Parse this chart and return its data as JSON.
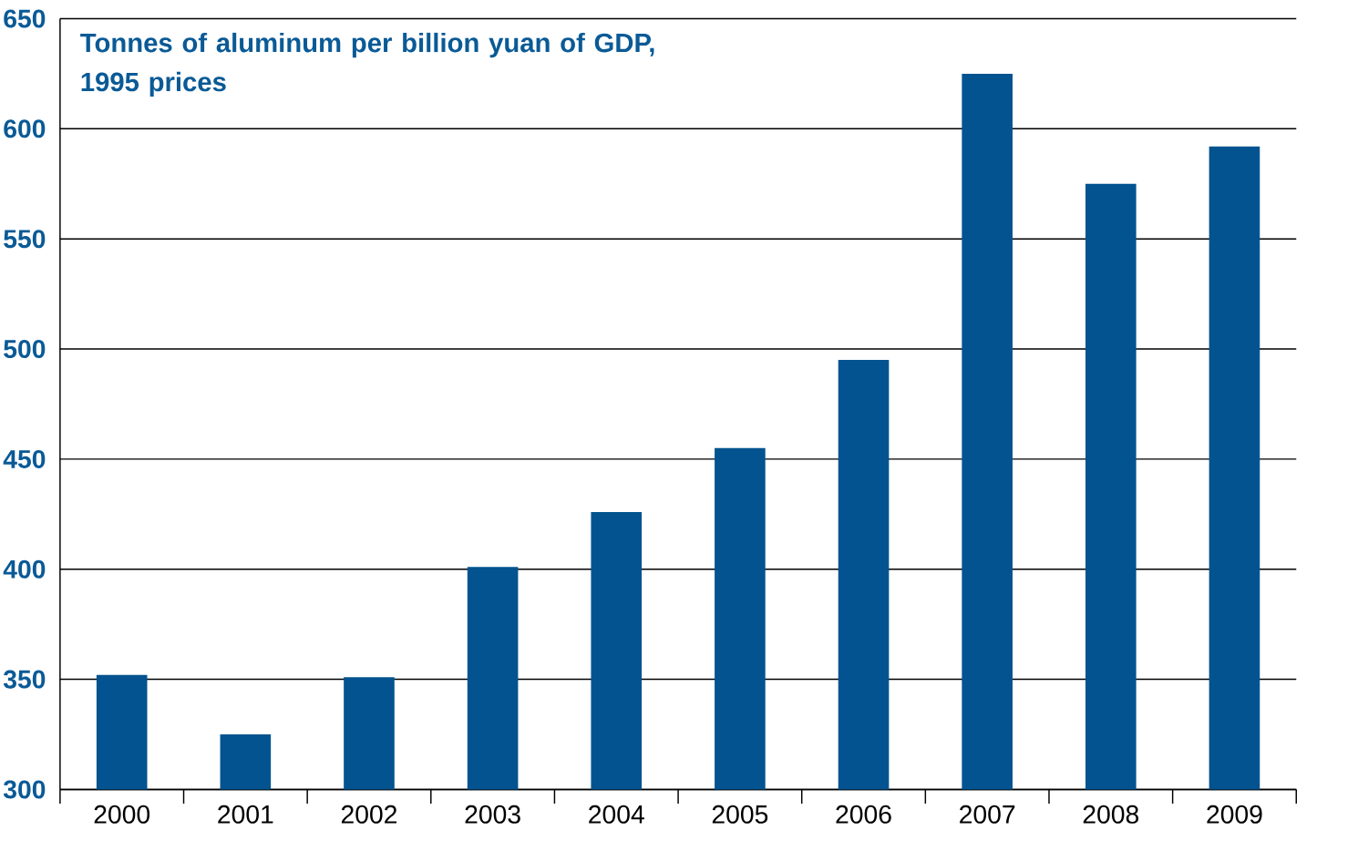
{
  "chart_data": {
    "type": "bar",
    "title": "Tonnes of aluminum per billion yuan of GDP, 1995 prices",
    "categories": [
      "2000",
      "2001",
      "2002",
      "2003",
      "2004",
      "2005",
      "2006",
      "2007",
      "2008",
      "2009"
    ],
    "values": [
      352,
      325,
      351,
      401,
      426,
      455,
      495,
      625,
      575,
      592
    ],
    "color": "#02538f",
    "ylim": [
      300,
      650
    ],
    "yticks": [
      300,
      350,
      400,
      450,
      500,
      550,
      600,
      650
    ],
    "grid": "y"
  }
}
